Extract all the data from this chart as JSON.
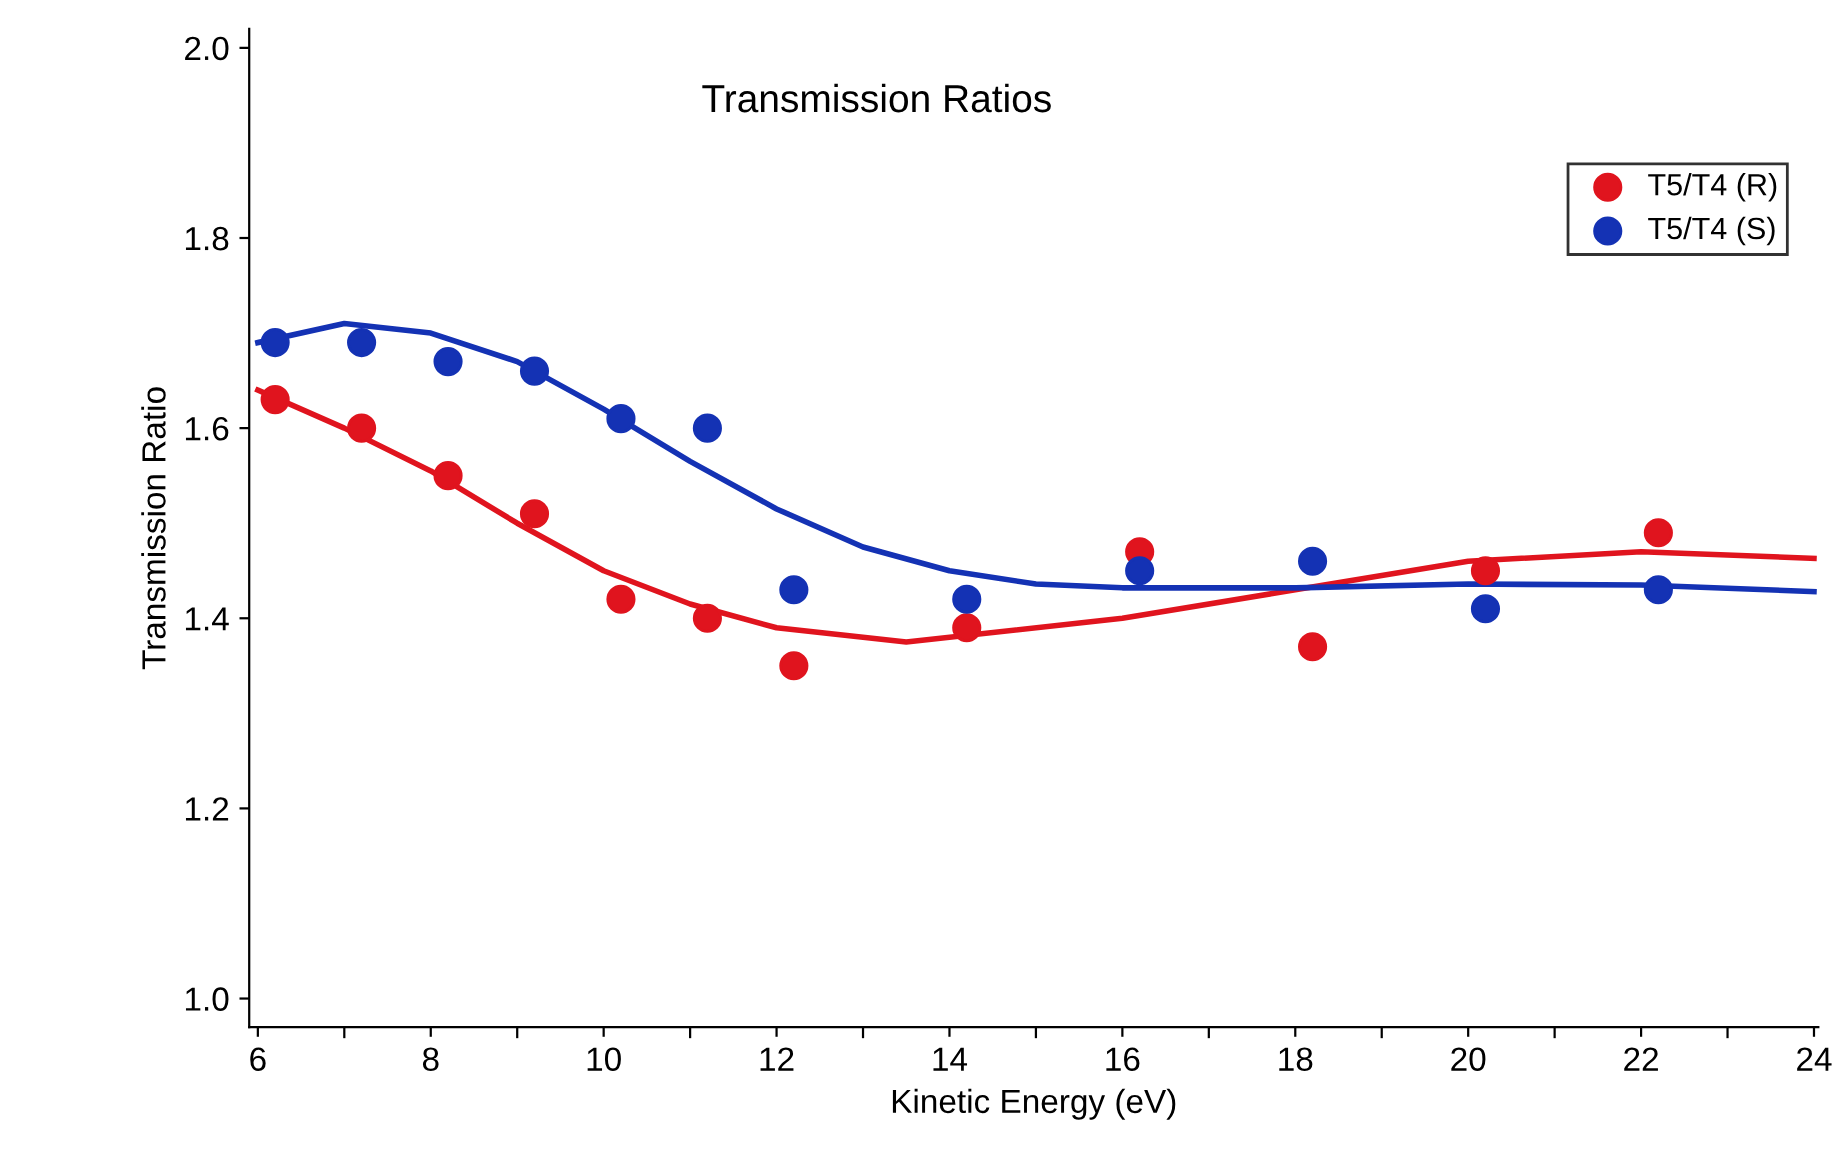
{
  "chart_data": {
    "type": "scatter",
    "title": "Transmission Ratios",
    "xlabel": "Kinetic Energy (eV)",
    "ylabel": "Transmission Ratio",
    "x": [
      6.2,
      7.2,
      8.2,
      9.2,
      10.2,
      11.2,
      12.2,
      14.2,
      16.2,
      18.2,
      20.2,
      22.2
    ],
    "xlim": [
      5.9,
      24.05
    ],
    "ylim": [
      0.97,
      2.02
    ],
    "xticks": [
      6,
      {
        "value": 7,
        "label": null
      },
      8,
      {
        "value": 9,
        "label": null
      },
      10,
      {
        "value": 11,
        "label": null
      },
      12,
      {
        "value": 13,
        "label": null
      },
      14,
      {
        "value": 15,
        "label": null
      },
      16,
      {
        "value": 17,
        "label": null
      },
      18,
      {
        "value": 19,
        "label": null
      },
      20,
      {
        "value": 21,
        "label": null
      },
      22,
      {
        "value": 23,
        "label": null
      },
      24
    ],
    "yticks": [
      {
        "value": 1,
        "label": "1.0"
      },
      1.2,
      1.4,
      1.6,
      1.8,
      {
        "value": 2,
        "label": "2.0"
      }
    ],
    "legend": "top right",
    "grid": false,
    "series": [
      {
        "name": "T5/T4 (R)",
        "color": "#e0141e",
        "marker": "circle",
        "values": [
          1.63,
          1.6,
          1.55,
          1.51,
          1.42,
          1.4,
          1.35,
          1.39,
          1.47,
          1.37,
          1.45,
          1.49
        ]
      },
      {
        "name": "T5/T4 (S)",
        "color": "#1432b4",
        "marker": "circle",
        "values": [
          1.69,
          1.69,
          1.67,
          1.66,
          1.61,
          1.6,
          1.43,
          1.42,
          1.45,
          1.46,
          1.41,
          1.43
        ]
      },
      {
        "type": "line",
        "marker": "none",
        "color": "#e0141e",
        "x": [
          6,
          7,
          8,
          9,
          10,
          11,
          12,
          13.5,
          16,
          18,
          20,
          22,
          24
        ],
        "values": [
          1.64,
          1.6,
          1.555,
          1.5,
          1.45,
          1.415,
          1.39,
          1.375,
          1.4,
          1.43,
          1.46,
          1.47,
          1.463
        ]
      },
      {
        "type": "line",
        "marker": "none",
        "color": "#1432b4",
        "x": [
          6,
          7,
          8,
          9,
          10,
          11,
          12,
          13,
          14,
          15,
          16,
          18,
          20,
          22,
          24
        ],
        "values": [
          1.69,
          1.71,
          1.7,
          1.67,
          1.62,
          1.565,
          1.515,
          1.475,
          1.45,
          1.436,
          1.432,
          1.432,
          1.436,
          1.435,
          1.428
        ]
      }
    ]
  }
}
